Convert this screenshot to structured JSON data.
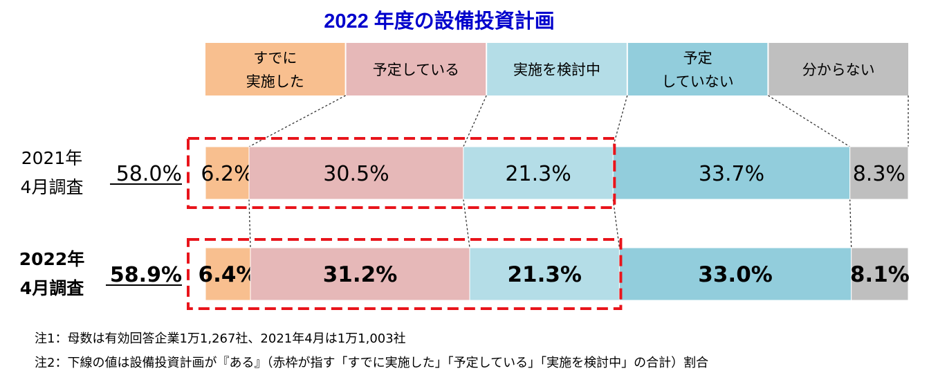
{
  "chart_data": {
    "type": "bar",
    "orientation": "horizontal",
    "stacked": true,
    "title": "2022 年度の設備投資計画",
    "legend_position": "top",
    "legend": [
      {
        "lines": [
          "すでに",
          "実施した"
        ],
        "color": "#f8bf8f"
      },
      {
        "lines": [
          "予定している"
        ],
        "color": "#e6b8b8"
      },
      {
        "lines": [
          "実施を検討中"
        ],
        "color": "#b4dde7"
      },
      {
        "lines": [
          "予定",
          "していない"
        ],
        "color": "#92cddc"
      },
      {
        "lines": [
          "分からない"
        ],
        "color": "#bfbfbf"
      }
    ],
    "categories": [
      "2021年\n4月調査",
      "2022年\n4月調査"
    ],
    "category_lines": [
      [
        "2021年",
        "4月調査"
      ],
      [
        "2022年",
        "4月調査"
      ]
    ],
    "plan_total_labels": [
      "58.0%",
      "58.9%"
    ],
    "series": [
      {
        "values": [
          6.2,
          6.4
        ],
        "labels": [
          "6.2%",
          "6.4%"
        ]
      },
      {
        "values": [
          30.5,
          31.2
        ],
        "labels": [
          "30.5%",
          "31.2%"
        ]
      },
      {
        "values": [
          21.3,
          21.3
        ],
        "labels": [
          "21.3%",
          "21.3%"
        ]
      },
      {
        "values": [
          33.7,
          33.0
        ],
        "labels": [
          "33.7%",
          "33.0%"
        ]
      },
      {
        "values": [
          8.3,
          8.1
        ],
        "labels": [
          "8.3%",
          "8.1%"
        ]
      }
    ],
    "xlim": [
      0,
      100
    ],
    "grid": false
  },
  "notes": [
    "注1：母数は有効回答企業1万1,267社、2021年4月は1万1,003社",
    "注2：下線の値は設備投資計画が『ある』（赤枠が指す「すでに実施した」「予定している」「実施を検討中」の合計）割合"
  ],
  "colors": {
    "title": "#0000cc",
    "highlight": "#e8141b",
    "text": "#000000",
    "connector": "#333333"
  }
}
